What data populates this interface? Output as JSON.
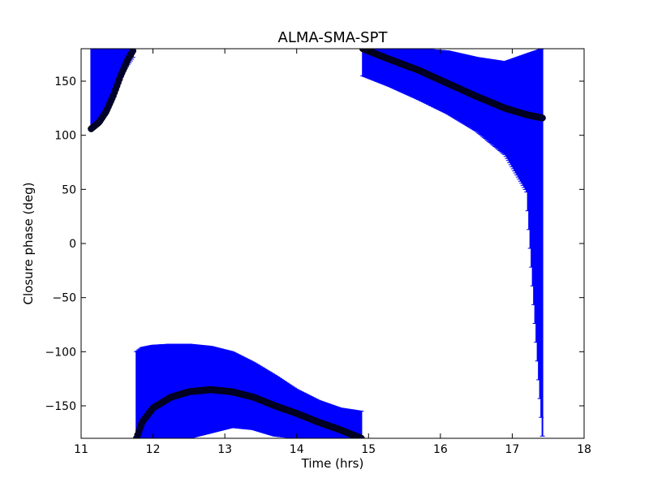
{
  "chart_data": {
    "type": "scatter",
    "title": "ALMA-SMA-SPT",
    "xlabel": "Time (hrs)",
    "ylabel": "Closure phase (deg)",
    "xlim": [
      11,
      18
    ],
    "ylim": [
      -180,
      180
    ],
    "xticks": [
      "11",
      "12",
      "13",
      "14",
      "15",
      "16",
      "17",
      "18"
    ],
    "yticks": [
      "−150",
      "−100",
      "−50",
      "0",
      "50",
      "100",
      "150"
    ],
    "grid": false,
    "colors": {
      "points": "#000033",
      "errorbars": "#0000ff",
      "axes": "#000000"
    },
    "series": [
      {
        "points": [
          {
            "x": 11.14,
            "y": 106
          },
          {
            "x": 11.25,
            "y": 112
          },
          {
            "x": 11.35,
            "y": 122
          },
          {
            "x": 11.45,
            "y": 137
          },
          {
            "x": 11.55,
            "y": 155
          },
          {
            "x": 11.65,
            "y": 170
          },
          {
            "x": 11.72,
            "y": 178
          }
        ],
        "err_lo": [
          107,
          110,
          125,
          140,
          155,
          165,
          172
        ],
        "err_hi": [
          180,
          180,
          180,
          180,
          180,
          180,
          180
        ]
      },
      {
        "points": [
          {
            "x": 11.77,
            "y": -180
          },
          {
            "x": 11.85,
            "y": -165
          },
          {
            "x": 12.0,
            "y": -152
          },
          {
            "x": 12.25,
            "y": -142
          },
          {
            "x": 12.5,
            "y": -137
          },
          {
            "x": 12.8,
            "y": -135
          },
          {
            "x": 13.1,
            "y": -137
          },
          {
            "x": 13.4,
            "y": -142
          },
          {
            "x": 13.7,
            "y": -150
          },
          {
            "x": 14.0,
            "y": -157
          },
          {
            "x": 14.3,
            "y": -165
          },
          {
            "x": 14.6,
            "y": -172
          },
          {
            "x": 14.9,
            "y": -180
          }
        ],
        "err_lo": [
          -180,
          -180,
          -180,
          -180,
          -180,
          -175,
          -170,
          -172,
          -178,
          -180,
          -180,
          -180,
          -180
        ],
        "err_hi": [
          -100,
          -96,
          -94,
          -93,
          -93,
          -95,
          -100,
          -110,
          -122,
          -135,
          -145,
          -152,
          -155
        ]
      },
      {
        "points": [
          {
            "x": 14.92,
            "y": 180
          },
          {
            "x": 15.3,
            "y": 170
          },
          {
            "x": 15.7,
            "y": 160
          },
          {
            "x": 16.1,
            "y": 148
          },
          {
            "x": 16.5,
            "y": 136
          },
          {
            "x": 16.9,
            "y": 125
          },
          {
            "x": 17.2,
            "y": 119
          },
          {
            "x": 17.42,
            "y": 116
          }
        ],
        "err_lo": [
          155,
          145,
          133,
          120,
          104,
          82,
          48,
          -178
        ],
        "err_hi": [
          180,
          180,
          180,
          178,
          172,
          168,
          175,
          180
        ]
      }
    ]
  }
}
